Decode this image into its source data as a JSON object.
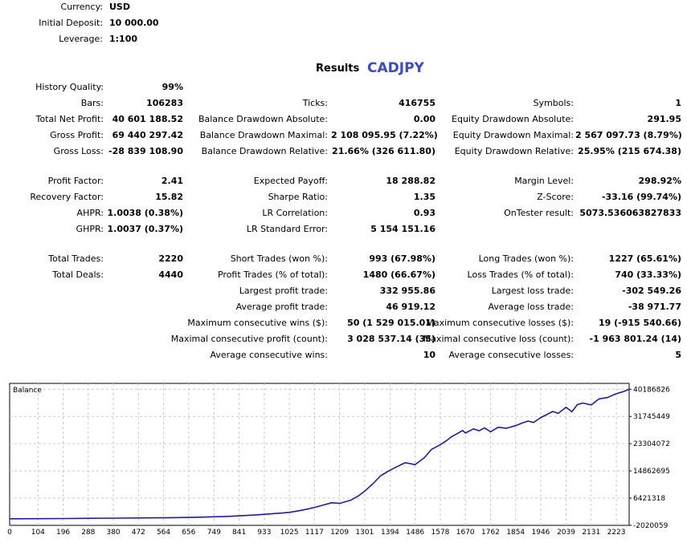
{
  "header": {
    "currency_label": "Currency:",
    "currency_value": "USD",
    "deposit_label": "Initial Deposit:",
    "deposit_value": "10 000.00",
    "leverage_label": "Leverage:",
    "leverage_value": "1:100"
  },
  "results": {
    "title": "Results",
    "symbol": "CADJPY"
  },
  "col1": [
    {
      "label": "History Quality:",
      "value": "99%"
    },
    {
      "label": "Bars:",
      "value": "106283"
    },
    {
      "label": "Total Net Profit:",
      "value": "40 601 188.52"
    },
    {
      "label": "Gross Profit:",
      "value": "69 440 297.42"
    },
    {
      "label": "Gross Loss:",
      "value": "-28 839 108.90"
    },
    {
      "label": "Profit Factor:",
      "value": "2.41"
    },
    {
      "label": "Recovery Factor:",
      "value": "15.82"
    },
    {
      "label": "AHPR:",
      "value": "1.0038 (0.38%)"
    },
    {
      "label": "GHPR:",
      "value": "1.0037 (0.37%)"
    },
    {
      "label": "Total Trades:",
      "value": "2220"
    },
    {
      "label": "Total Deals:",
      "value": "4440"
    }
  ],
  "col2": [
    {
      "label": "Ticks:",
      "value": "416755"
    },
    {
      "label": "Balance Drawdown Absolute:",
      "value": "0.00"
    },
    {
      "label": "Balance Drawdown Maximal:",
      "value": "2 108 095.95 (7.22%)"
    },
    {
      "label": "Balance Drawdown Relative:",
      "value": "21.66% (326 611.80)"
    },
    {
      "label": "Expected Payoff:",
      "value": "18 288.82"
    },
    {
      "label": "Sharpe Ratio:",
      "value": "1.35"
    },
    {
      "label": "LR Correlation:",
      "value": "0.93"
    },
    {
      "label": "LR Standard Error:",
      "value": "5 154 151.16"
    },
    {
      "label": "Short Trades (won %):",
      "value": "993 (67.98%)"
    },
    {
      "label": "Profit Trades (% of total):",
      "value": "1480 (66.67%)"
    },
    {
      "label": "Largest profit trade:",
      "value": "332 955.86"
    },
    {
      "label": "Average profit trade:",
      "value": "46 919.12"
    },
    {
      "label": "Maximum consecutive wins ($):",
      "value": "50 (1 529 015.01)"
    },
    {
      "label": "Maximal consecutive profit (count):",
      "value": "3 028 537.14 (35)"
    },
    {
      "label": "Average consecutive wins:",
      "value": "10"
    }
  ],
  "col3": [
    {
      "label": "Symbols:",
      "value": "1"
    },
    {
      "label": "Equity Drawdown Absolute:",
      "value": "291.95"
    },
    {
      "label": "Equity Drawdown Maximal:",
      "value": "2 567 097.73 (8.79%)"
    },
    {
      "label": "Equity Drawdown Relative:",
      "value": "25.95% (215 674.38)"
    },
    {
      "label": "Margin Level:",
      "value": "298.92%"
    },
    {
      "label": "Z-Score:",
      "value": "-33.16 (99.74%)"
    },
    {
      "label": "OnTester result:",
      "value": "5073.536063827833"
    },
    {
      "label": "Long Trades (won %):",
      "value": "1227 (65.61%)"
    },
    {
      "label": "Loss Trades (% of total):",
      "value": "740 (33.33%)"
    },
    {
      "label": "Largest loss trade:",
      "value": "-302 549.26"
    },
    {
      "label": "Average loss trade:",
      "value": "-38 971.77"
    },
    {
      "label": "Maximum consecutive losses ($):",
      "value": "19 (-915 540.66)"
    },
    {
      "label": "Maximal consecutive loss (count):",
      "value": "-1 963 801.24 (14)"
    },
    {
      "label": "Average consecutive losses:",
      "value": "5"
    }
  ],
  "chart_data": {
    "type": "line",
    "title": "Balance",
    "xlim": [
      0,
      2270
    ],
    "ylim": [
      -2020059,
      42000000
    ],
    "x_ticks": [
      "0",
      "104",
      "196",
      "288",
      "380",
      "472",
      "564",
      "656",
      "749",
      "841",
      "933",
      "1025",
      "1117",
      "1209",
      "1301",
      "1394",
      "1486",
      "1578",
      "1670",
      "1762",
      "1854",
      "1946",
      "2039",
      "2131",
      "2223"
    ],
    "x_tick_values": [
      0,
      104,
      196,
      288,
      380,
      472,
      564,
      656,
      749,
      841,
      933,
      1025,
      1117,
      1209,
      1301,
      1394,
      1486,
      1578,
      1670,
      1762,
      1854,
      1946,
      2039,
      2131,
      2223
    ],
    "y_ticks": [
      "40186826",
      "31745449",
      "23304072",
      "14862695",
      "6421318",
      "-2020059"
    ],
    "y_tick_values": [
      40186826,
      31745449,
      23304072,
      14862695,
      6421318,
      -2020059
    ],
    "series": [
      {
        "name": "Balance",
        "color": "#1c1ca0",
        "x": [
          0,
          100,
          200,
          300,
          400,
          500,
          600,
          700,
          750,
          800,
          850,
          900,
          950,
          1000,
          1025,
          1060,
          1090,
          1120,
          1150,
          1180,
          1209,
          1250,
          1280,
          1301,
          1330,
          1360,
          1394,
          1420,
          1450,
          1486,
          1520,
          1545,
          1578,
          1600,
          1620,
          1640,
          1660,
          1670,
          1700,
          1720,
          1740,
          1762,
          1790,
          1820,
          1854,
          1880,
          1900,
          1920,
          1946,
          1970,
          1990,
          2010,
          2039,
          2060,
          2080,
          2100,
          2131,
          2160,
          2190,
          2223,
          2250,
          2270
        ],
        "values": [
          10000,
          40000,
          90000,
          160000,
          230000,
          300000,
          370000,
          520000,
          640000,
          760000,
          980000,
          1200000,
          1500000,
          1800000,
          2000000,
          2500000,
          3000000,
          3600000,
          4300000,
          5000000,
          4800000,
          5800000,
          7200000,
          8600000,
          10800000,
          13400000,
          15100000,
          16200000,
          17400000,
          16800000,
          19000000,
          21500000,
          23000000,
          24200000,
          25500000,
          26400000,
          27400000,
          26600000,
          27900000,
          27300000,
          28200000,
          27000000,
          28400000,
          28100000,
          28900000,
          29800000,
          30300000,
          29900000,
          31400000,
          32400000,
          33300000,
          32700000,
          34600000,
          33200000,
          35400000,
          35900000,
          35300000,
          37200000,
          37600000,
          38800000,
          39500000,
          40186826
        ]
      }
    ]
  }
}
